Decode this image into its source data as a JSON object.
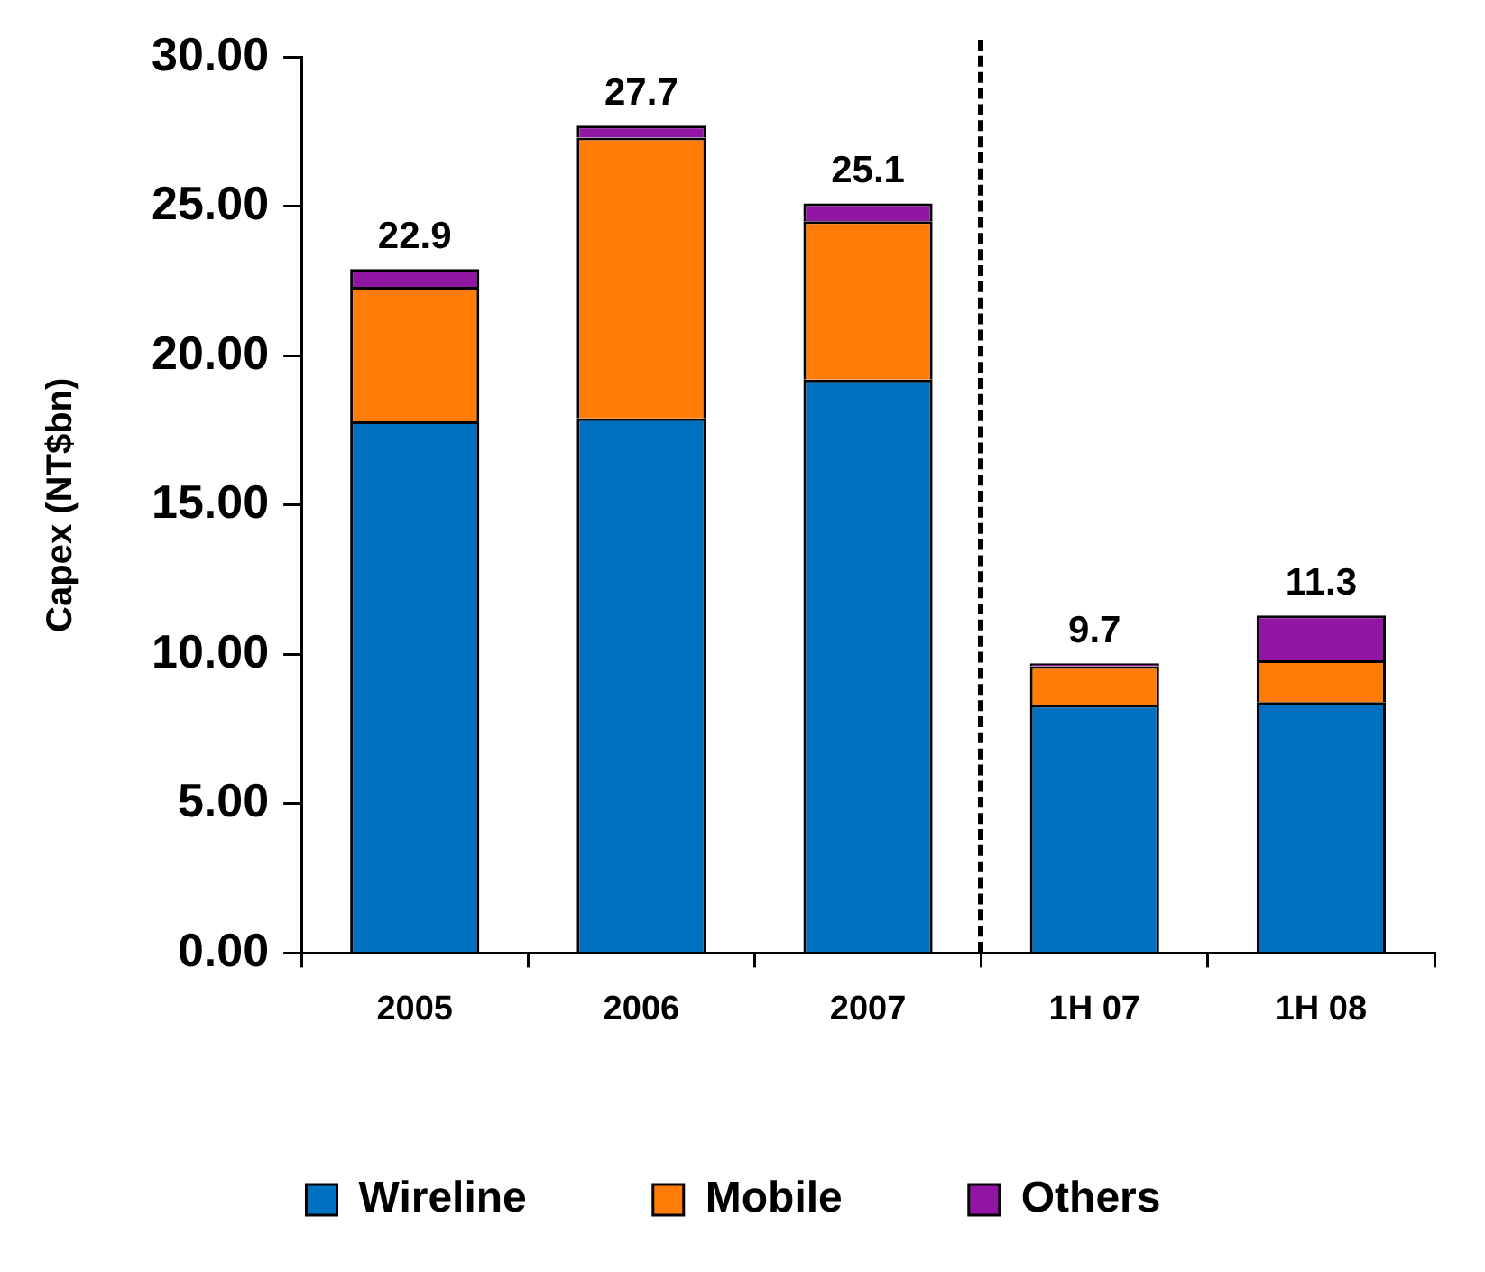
{
  "chart_data": {
    "type": "bar",
    "stacked": true,
    "ylabel": "Capex (NT$bn)",
    "categories": [
      "2005",
      "2006",
      "2007",
      "1H 07",
      "1H 08"
    ],
    "series": [
      {
        "name": "Wireline",
        "color": "#0070c0",
        "values": [
          17.8,
          17.9,
          19.2,
          8.3,
          8.4
        ]
      },
      {
        "name": "Mobile",
        "color": "#ff7c08",
        "values": [
          4.5,
          9.4,
          5.3,
          1.3,
          1.4
        ]
      },
      {
        "name": "Others",
        "color": "#9216a4",
        "values": [
          0.6,
          0.4,
          0.6,
          0.1,
          1.5
        ]
      }
    ],
    "totals": [
      "22.9",
      "27.7",
      "25.1",
      "9.7",
      "11.3"
    ],
    "ylim": [
      0,
      30
    ],
    "yticks": [
      {
        "value": 0,
        "label": "0.00"
      },
      {
        "value": 5,
        "label": "5.00"
      },
      {
        "value": 10,
        "label": "10.00"
      },
      {
        "value": 15,
        "label": "15.00"
      },
      {
        "value": 20,
        "label": "20.00"
      },
      {
        "value": 25,
        "label": "25.00"
      },
      {
        "value": 30,
        "label": "30.00"
      }
    ],
    "legend": "bottom",
    "grid": false
  }
}
